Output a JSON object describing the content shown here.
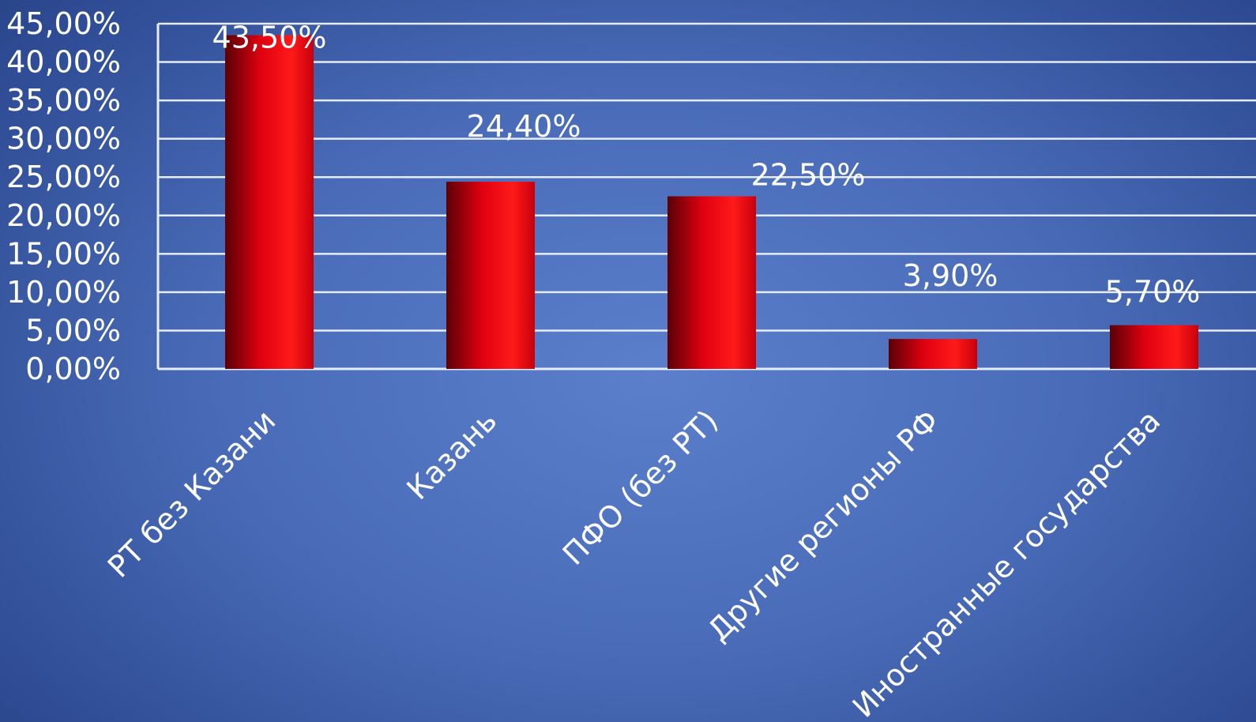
{
  "chart_data": {
    "type": "bar",
    "categories": [
      "РТ без Казани",
      "Казань",
      "ПФО (без РТ)",
      "Другие регионы РФ",
      "Иностранные государства"
    ],
    "values": [
      43.5,
      24.4,
      22.5,
      3.9,
      5.7
    ],
    "data_labels": [
      "43,50%",
      "24,40%",
      "22,50%",
      "3,90%",
      "5,70%"
    ],
    "y_ticks": [
      0,
      5,
      10,
      15,
      20,
      25,
      30,
      35,
      40,
      45
    ],
    "y_tick_labels": [
      "0,00%",
      "5,00%",
      "10,00%",
      "15,00%",
      "20,00%",
      "25,00%",
      "30,00%",
      "35,00%",
      "40,00%",
      "45,00%"
    ],
    "ylim": [
      0,
      45
    ],
    "grid": true,
    "legend": "none",
    "bar_color": "#e8000a",
    "background_color": "#4f72c0"
  }
}
